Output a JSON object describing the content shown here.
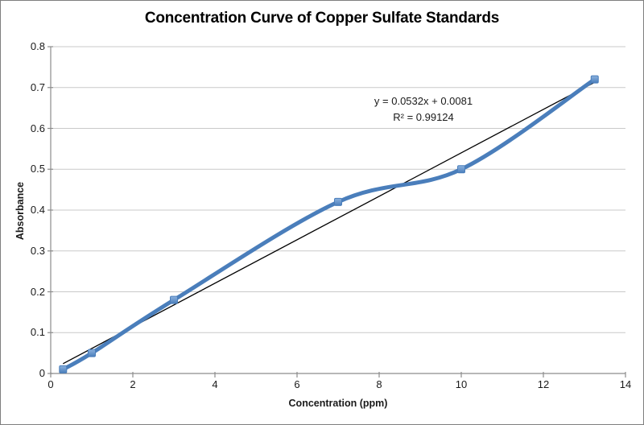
{
  "chart_data": {
    "type": "line",
    "title": "Concentration Curve of Copper Sulfate Standards",
    "xlabel": "Concentration (ppm)",
    "ylabel": "Absorbance",
    "x": [
      0.3,
      1,
      3,
      7,
      10,
      13.25
    ],
    "y": [
      0.01,
      0.05,
      0.18,
      0.42,
      0.5,
      0.72
    ],
    "xlim": [
      0,
      14
    ],
    "ylim": [
      0,
      0.8
    ],
    "x_ticks": [
      0,
      2,
      4,
      6,
      8,
      10,
      12,
      14
    ],
    "x_tick_labels": [
      "0",
      "2",
      "4",
      "6",
      "8",
      "10",
      "12",
      "14"
    ],
    "y_ticks": [
      0,
      0.1,
      0.2,
      0.3,
      0.4,
      0.5,
      0.6,
      0.7,
      0.8
    ],
    "y_tick_labels": [
      "0",
      "0.1",
      "0.2",
      "0.3",
      "0.4",
      "0.5",
      "0.6",
      "0.7",
      "0.8"
    ],
    "grid": "horizontal",
    "legend": "none",
    "smoothed_line": true,
    "marker": "square",
    "series_color": "#4a7ebb",
    "marker_color": "#4a7ebb",
    "marker_highlight_color": "#8cb2de",
    "gridline_color": "#c9c9c9",
    "axis_color": "#8c8c8c",
    "trendline": {
      "slope": 0.0532,
      "intercept": 0.0081,
      "equation": "y = 0.0532x + 0.0081",
      "r_squared": "R² = 0.99124",
      "color": "#000000"
    }
  }
}
